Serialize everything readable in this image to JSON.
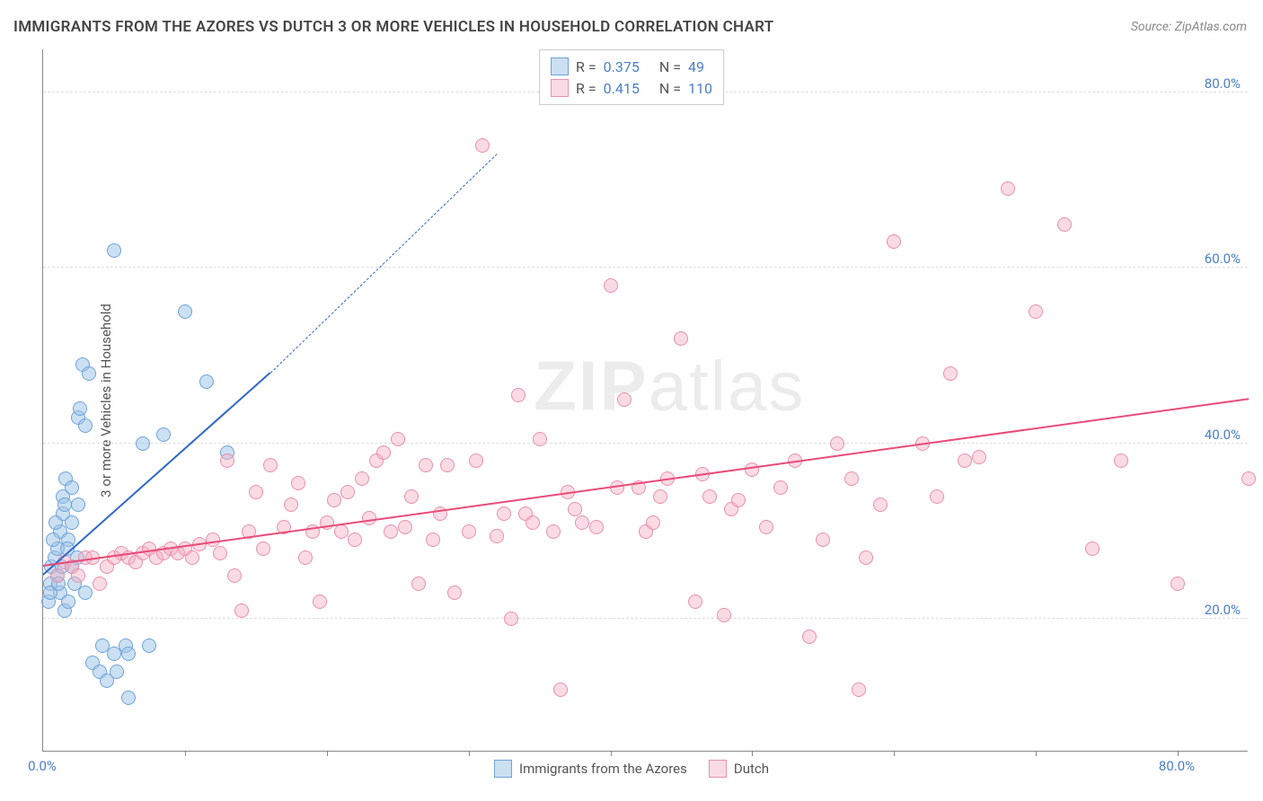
{
  "title": "IMMIGRANTS FROM THE AZORES VS DUTCH 3 OR MORE VEHICLES IN HOUSEHOLD CORRELATION CHART",
  "source": "Source: ZipAtlas.com",
  "ylabel": "3 or more Vehicles in Household",
  "watermark_bold": "ZIP",
  "watermark_light": "atlas",
  "chart": {
    "type": "scatter",
    "xlim": [
      0,
      85
    ],
    "ylim": [
      5,
      85
    ],
    "xticks": [
      0,
      80
    ],
    "xticklabels": [
      "0.0%",
      "80.0%"
    ],
    "xtick_marks": [
      10,
      20,
      30,
      40,
      50,
      60,
      70,
      80
    ],
    "yticks": [
      20,
      40,
      60,
      80
    ],
    "yticklabels": [
      "20.0%",
      "40.0%",
      "60.0%",
      "80.0%"
    ],
    "background_color": "#ffffff",
    "grid_color": "#dddddd",
    "axis_color": "#888888",
    "tick_label_color": "#4a7ec9",
    "point_radius": 8,
    "series": [
      {
        "name": "Immigrants from the Azores",
        "color_fill": "rgba(154,193,231,0.5)",
        "color_stroke": "#6fa3d8",
        "trend_color": "#2f67c9",
        "R": "0.375",
        "N": "49",
        "trend": {
          "x1": 0,
          "y1": 25,
          "x2": 16,
          "y2": 48,
          "x2_dash": 32,
          "y2_dash": 73
        },
        "points": [
          [
            0.5,
            24
          ],
          [
            0.6,
            26
          ],
          [
            0.8,
            27
          ],
          [
            1.0,
            28
          ],
          [
            1.0,
            25
          ],
          [
            1.2,
            23
          ],
          [
            1.2,
            30
          ],
          [
            1.4,
            32
          ],
          [
            1.4,
            34
          ],
          [
            1.5,
            21
          ],
          [
            1.6,
            36
          ],
          [
            1.8,
            22
          ],
          [
            1.8,
            29
          ],
          [
            2.0,
            31
          ],
          [
            2.0,
            35
          ],
          [
            2.0,
            26
          ],
          [
            2.2,
            24
          ],
          [
            2.4,
            27
          ],
          [
            2.5,
            33
          ],
          [
            2.5,
            43
          ],
          [
            2.6,
            44
          ],
          [
            2.8,
            49
          ],
          [
            3.0,
            23
          ],
          [
            3.0,
            42
          ],
          [
            3.2,
            48
          ],
          [
            3.5,
            15
          ],
          [
            4.0,
            14
          ],
          [
            4.2,
            17
          ],
          [
            4.5,
            13
          ],
          [
            5.0,
            62
          ],
          [
            5.0,
            16
          ],
          [
            5.2,
            14
          ],
          [
            5.8,
            17
          ],
          [
            6.0,
            11
          ],
          [
            6.0,
            16
          ],
          [
            7.0,
            40
          ],
          [
            7.5,
            17
          ],
          [
            8.5,
            41
          ],
          [
            10.0,
            55
          ],
          [
            11.5,
            47
          ],
          [
            13.0,
            39
          ],
          [
            0.4,
            22
          ],
          [
            0.5,
            23
          ],
          [
            0.7,
            29
          ],
          [
            0.9,
            31
          ],
          [
            1.1,
            24
          ],
          [
            1.3,
            26
          ],
          [
            1.5,
            33
          ],
          [
            1.7,
            28
          ]
        ]
      },
      {
        "name": "Dutch",
        "color_fill": "rgba(244,176,196,0.45)",
        "color_stroke": "#e890ad",
        "trend_color": "#e94b7a",
        "R": "0.415",
        "N": "110",
        "trend": {
          "x1": 0,
          "y1": 26,
          "x2": 85,
          "y2": 45
        },
        "points": [
          [
            1,
            25
          ],
          [
            1.5,
            26.5
          ],
          [
            2,
            26
          ],
          [
            2.5,
            25
          ],
          [
            3,
            27
          ],
          [
            3.5,
            27
          ],
          [
            4,
            24
          ],
          [
            4.5,
            26
          ],
          [
            5,
            27
          ],
          [
            5.5,
            27.5
          ],
          [
            6,
            27
          ],
          [
            6.5,
            26.5
          ],
          [
            7,
            27.5
          ],
          [
            7.5,
            28
          ],
          [
            8,
            27
          ],
          [
            8.5,
            27.5
          ],
          [
            9,
            28
          ],
          [
            9.5,
            27.5
          ],
          [
            10,
            28
          ],
          [
            10.5,
            27
          ],
          [
            11,
            28.5
          ],
          [
            12,
            29
          ],
          [
            12.5,
            27.5
          ],
          [
            13,
            38
          ],
          [
            13.5,
            25
          ],
          [
            14,
            21
          ],
          [
            14.5,
            30
          ],
          [
            15,
            34.5
          ],
          [
            15.5,
            28
          ],
          [
            16,
            37.5
          ],
          [
            17,
            30.5
          ],
          [
            17.5,
            33
          ],
          [
            18,
            35.5
          ],
          [
            18.5,
            27
          ],
          [
            19,
            30
          ],
          [
            19.5,
            22
          ],
          [
            20,
            31
          ],
          [
            20.5,
            33.5
          ],
          [
            21,
            30
          ],
          [
            21.5,
            34.5
          ],
          [
            22,
            29
          ],
          [
            22.5,
            36
          ],
          [
            23,
            31.5
          ],
          [
            23.5,
            38
          ],
          [
            24,
            39
          ],
          [
            24.5,
            30
          ],
          [
            25,
            40.5
          ],
          [
            25.5,
            30.5
          ],
          [
            26,
            34
          ],
          [
            26.5,
            24
          ],
          [
            27,
            37.5
          ],
          [
            27.5,
            29
          ],
          [
            28,
            32
          ],
          [
            28.5,
            37.5
          ],
          [
            29,
            23
          ],
          [
            30,
            30
          ],
          [
            30.5,
            38
          ],
          [
            31,
            74
          ],
          [
            32,
            29.5
          ],
          [
            32.5,
            32
          ],
          [
            33,
            20
          ],
          [
            33.5,
            45.5
          ],
          [
            34,
            32
          ],
          [
            34.5,
            31
          ],
          [
            35,
            40.5
          ],
          [
            36,
            30
          ],
          [
            36.5,
            12
          ],
          [
            37,
            34.5
          ],
          [
            37.5,
            32.5
          ],
          [
            38,
            31
          ],
          [
            39,
            30.5
          ],
          [
            40,
            58
          ],
          [
            40.5,
            35
          ],
          [
            41,
            45
          ],
          [
            42,
            35
          ],
          [
            42.5,
            30
          ],
          [
            43,
            31
          ],
          [
            43.5,
            34
          ],
          [
            44,
            36
          ],
          [
            45,
            52
          ],
          [
            46,
            22
          ],
          [
            46.5,
            36.5
          ],
          [
            47,
            34
          ],
          [
            48,
            20.5
          ],
          [
            48.5,
            32.5
          ],
          [
            49,
            33.5
          ],
          [
            50,
            37
          ],
          [
            51,
            30.5
          ],
          [
            52,
            35
          ],
          [
            53,
            38
          ],
          [
            54,
            18
          ],
          [
            55,
            29
          ],
          [
            56,
            40
          ],
          [
            57,
            36
          ],
          [
            57.5,
            12
          ],
          [
            58,
            27
          ],
          [
            59,
            33
          ],
          [
            60,
            63
          ],
          [
            62,
            40
          ],
          [
            63,
            34
          ],
          [
            64,
            48
          ],
          [
            65,
            38
          ],
          [
            66,
            38.5
          ],
          [
            68,
            69
          ],
          [
            70,
            55
          ],
          [
            72,
            65
          ],
          [
            74,
            28
          ],
          [
            76,
            38
          ],
          [
            80,
            24
          ],
          [
            85,
            36
          ]
        ]
      }
    ]
  },
  "legend_bottom": [
    {
      "label": "Immigrants from the Azores",
      "fill": "rgba(154,193,231,0.5)",
      "stroke": "#6fa3d8"
    },
    {
      "label": "Dutch",
      "fill": "rgba(244,176,196,0.45)",
      "stroke": "#e890ad"
    }
  ]
}
